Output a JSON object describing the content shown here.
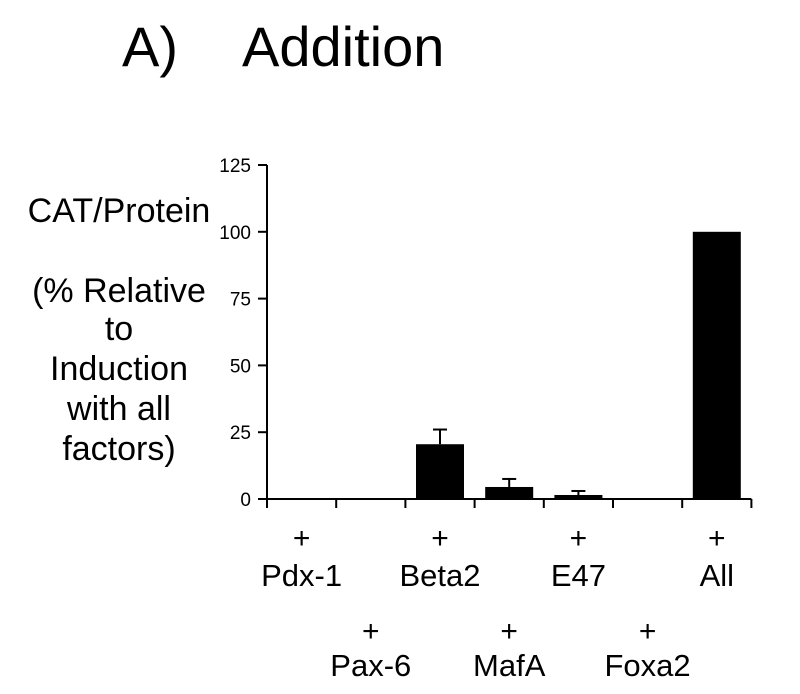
{
  "chart_data": {
    "type": "bar",
    "title_letter": "A)",
    "title": "Addition",
    "ylabel_lines": [
      "CAT/Protein",
      "",
      "(% Relative",
      "to",
      "Induction",
      "with all",
      "factors)"
    ],
    "ylim": [
      0,
      125
    ],
    "yticks": [
      0,
      25,
      50,
      75,
      100,
      125
    ],
    "plus_marker": "+",
    "categories": [
      "Pdx-1",
      "Pax-6",
      "Beta2",
      "MafA",
      "E47",
      "Foxa2",
      "All"
    ],
    "values": [
      0,
      0,
      20.5,
      4.5,
      1.5,
      0,
      100
    ],
    "errors": [
      0,
      0,
      5.5,
      3,
      1.5,
      0,
      0
    ],
    "bar_color": "#000000",
    "grid": false,
    "legend": "none"
  }
}
